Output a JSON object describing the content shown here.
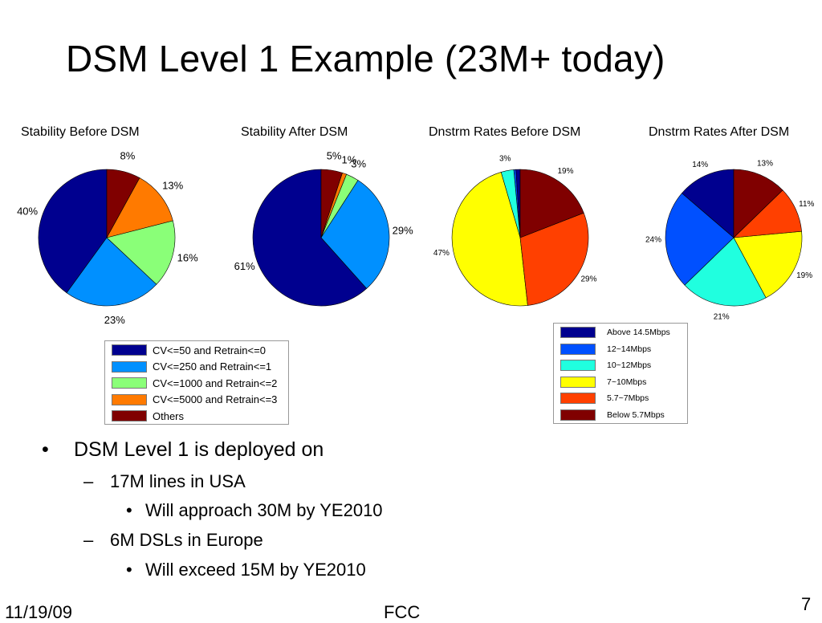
{
  "slide": {
    "title": "DSM Level 1 Example (23M+  today)",
    "date": "11/19/09",
    "footer_center": "FCC",
    "page_number": "7"
  },
  "chart_data": [
    {
      "type": "pie",
      "title": "Stability Before DSM",
      "labels": [
        "CV<=50 and Retrain<=0",
        "CV<=250 and Retrain<=1",
        "CV<=1000 and Retrain<=2",
        "CV<=5000 and Retrain<=3",
        "Others"
      ],
      "values": [
        40,
        23,
        16,
        13,
        8
      ],
      "value_labels": [
        "40%",
        "23%",
        "16%",
        "13%",
        "8%"
      ],
      "colors": [
        "#00008F",
        "#0090FF",
        "#8AFF78",
        "#FF7A00",
        "#800000"
      ],
      "order": "counterclockwise from top"
    },
    {
      "type": "pie",
      "title": "Stability After DSM",
      "labels": [
        "CV<=50 and Retrain<=0",
        "CV<=250 and Retrain<=1",
        "CV<=1000 and Retrain<=2",
        "CV<=5000 and Retrain<=3",
        "Others"
      ],
      "values": [
        61,
        29,
        3,
        1,
        5
      ],
      "value_labels": [
        "61%",
        "29%",
        "3%",
        "1%",
        "5%"
      ],
      "colors": [
        "#00008F",
        "#0090FF",
        "#8AFF78",
        "#FF7A00",
        "#800000"
      ],
      "order": "counterclockwise from top"
    },
    {
      "type": "pie",
      "title": "Dnstrm Rates Before DSM",
      "labels": [
        "Above 14.5Mbps",
        "12~14Mbps",
        "10~12Mbps",
        "7~10Mbps",
        "5.7~7Mbps",
        "Below 5.7Mbps"
      ],
      "values": [
        1,
        0.5,
        3,
        47,
        29,
        19
      ],
      "value_labels": [
        "",
        "",
        "3%",
        "47%",
        "29%",
        "19%"
      ],
      "colors": [
        "#00008F",
        "#0050FF",
        "#20FFDF",
        "#FFFF00",
        "#FF4000",
        "#800000"
      ],
      "order": "counterclockwise from top"
    },
    {
      "type": "pie",
      "title": "Dnstrm Rates After DSM",
      "labels": [
        "Above 14.5Mbps",
        "12~14Mbps",
        "10~12Mbps",
        "7~10Mbps",
        "5.7~7Mbps",
        "Below 5.7Mbps"
      ],
      "values": [
        14,
        24,
        21,
        19,
        11,
        13
      ],
      "value_labels": [
        "14%",
        "24%",
        "21%",
        "19%",
        "11%",
        "13%"
      ],
      "colors": [
        "#00008F",
        "#0050FF",
        "#20FFDF",
        "#FFFF00",
        "#FF4000",
        "#800000"
      ],
      "order": "counterclockwise from top"
    }
  ],
  "legends": {
    "stability": {
      "items": [
        {
          "label": "CV<=50 and Retrain<=0",
          "color": "#00008F"
        },
        {
          "label": "CV<=250 and Retrain<=1",
          "color": "#0090FF"
        },
        {
          "label": "CV<=1000 and Retrain<=2",
          "color": "#8AFF78"
        },
        {
          "label": "CV<=5000 and Retrain<=3",
          "color": "#FF7A00"
        },
        {
          "label": "Others",
          "color": "#800000"
        }
      ]
    },
    "rates": {
      "items": [
        {
          "label": "Above 14.5Mbps",
          "color": "#00008F"
        },
        {
          "label": "12~14Mbps",
          "color": "#0050FF"
        },
        {
          "label": "10~12Mbps",
          "color": "#20FFDF"
        },
        {
          "label": "7~10Mbps",
          "color": "#FFFF00"
        },
        {
          "label": "5.7~7Mbps",
          "color": "#FF4000"
        },
        {
          "label": "Below 5.7Mbps",
          "color": "#800000"
        }
      ]
    }
  },
  "bullets": [
    {
      "level": 1,
      "marker": "•",
      "text": "DSM Level 1 is deployed on"
    },
    {
      "level": 2,
      "marker": "–",
      "text": "17M lines in USA"
    },
    {
      "level": 3,
      "marker": "•",
      "text": "Will approach 30M by YE2010"
    },
    {
      "level": 2,
      "marker": "–",
      "text": "6M DSLs in Europe"
    },
    {
      "level": 3,
      "marker": "•",
      "text": "Will exceed 15M by YE2010"
    }
  ]
}
